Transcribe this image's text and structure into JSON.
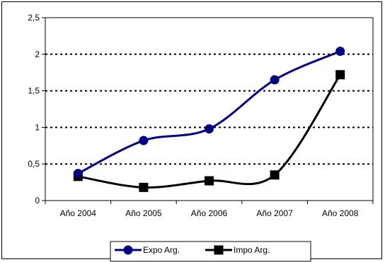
{
  "chart_data": {
    "type": "line",
    "categories": [
      "Año 2004",
      "Año 2005",
      "Año 2006",
      "Año 2007",
      "Año 2008"
    ],
    "series": [
      {
        "name": "Expo Arg.",
        "values": [
          0.37,
          0.82,
          0.98,
          1.65,
          2.04
        ],
        "color": "#000080",
        "marker": "circle"
      },
      {
        "name": "Impo Arg.",
        "values": [
          0.33,
          0.18,
          0.27,
          0.35,
          1.72
        ],
        "color": "#000000",
        "marker": "square"
      }
    ],
    "yticks": [
      "0",
      "0,5",
      "1",
      "1,5",
      "2",
      "2,5"
    ],
    "ylim": [
      0,
      2.5
    ],
    "ytick_step": 0.5,
    "grid": "horizontal dotted",
    "legend_position": "bottom"
  }
}
